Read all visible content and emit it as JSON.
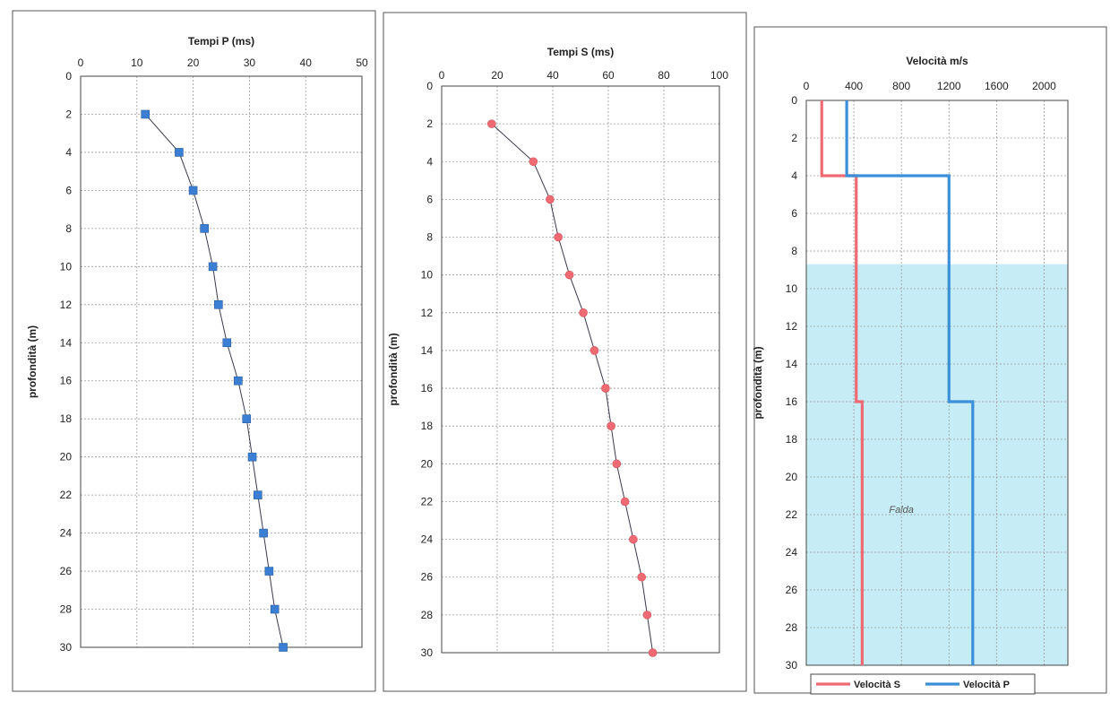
{
  "chart_data": [
    {
      "type": "line",
      "title": "Tempi P (ms)",
      "ylabel": "profondità (m)",
      "xlabel": "",
      "xlim": [
        0,
        50
      ],
      "ylim": [
        0,
        30
      ],
      "y_inverted": true,
      "x_axis_position": "top",
      "x_ticks": [
        "0",
        "10",
        "20",
        "30",
        "40",
        "50"
      ],
      "y_ticks": [
        "0",
        "2",
        "4",
        "6",
        "8",
        "10",
        "12",
        "14",
        "16",
        "18",
        "20",
        "22",
        "24",
        "26",
        "28",
        "30"
      ],
      "grid": true,
      "marker": "square",
      "color": "#3b7fd4",
      "x": [
        11.5,
        17.5,
        20,
        22,
        23.5,
        24.5,
        26,
        28,
        29.5,
        30.5,
        31.5,
        32.5,
        33.5,
        34.5,
        36
      ],
      "y": [
        2,
        4,
        6,
        8,
        10,
        12,
        14,
        16,
        18,
        20,
        22,
        24,
        26,
        28,
        30
      ]
    },
    {
      "type": "line",
      "title": "Tempi S (ms)",
      "ylabel": "profondità (m)",
      "xlabel": "",
      "xlim": [
        0,
        100
      ],
      "ylim": [
        0,
        30
      ],
      "y_inverted": true,
      "x_axis_position": "top",
      "x_ticks": [
        "0",
        "20",
        "40",
        "60",
        "80",
        "100"
      ],
      "y_ticks": [
        "0",
        "2",
        "4",
        "6",
        "8",
        "10",
        "12",
        "14",
        "16",
        "18",
        "20",
        "22",
        "24",
        "26",
        "28",
        "30"
      ],
      "grid": true,
      "marker": "circle",
      "color": "#f06a74",
      "x": [
        18,
        33,
        39,
        42,
        46,
        51,
        55,
        59,
        61,
        63,
        66,
        69,
        72,
        74,
        76
      ],
      "y": [
        2,
        4,
        6,
        8,
        10,
        12,
        14,
        16,
        18,
        20,
        22,
        24,
        26,
        28,
        30
      ]
    },
    {
      "type": "line",
      "title": "Velocità  m/s",
      "ylabel": "profondità (m)",
      "xlabel": "",
      "xlim": [
        0,
        2200
      ],
      "ylim": [
        0,
        30
      ],
      "y_inverted": true,
      "x_axis_position": "top",
      "x_ticks": [
        "0",
        "400",
        "800",
        "1200",
        "1600",
        "2000"
      ],
      "y_ticks": [
        "0",
        "2",
        "4",
        "6",
        "8",
        "10",
        "12",
        "14",
        "16",
        "18",
        "20",
        "22",
        "24",
        "26",
        "28",
        "30"
      ],
      "grid": true,
      "legend_position": "bottom",
      "shaded_region": {
        "label": "Falda",
        "y_from": 8.7,
        "y_to": 30,
        "color": "#c6ecf5"
      },
      "series": [
        {
          "name": "Velocità S",
          "color": "#f06a74",
          "x": [
            130,
            130,
            420,
            420,
            470,
            470
          ],
          "y": [
            0,
            4,
            4,
            16,
            16,
            30
          ]
        },
        {
          "name": "Velocità P",
          "color": "#3b8fd9",
          "x": [
            340,
            340,
            1200,
            1200,
            1400,
            1400
          ],
          "y": [
            0,
            4,
            4,
            16,
            16,
            30
          ]
        }
      ]
    }
  ]
}
